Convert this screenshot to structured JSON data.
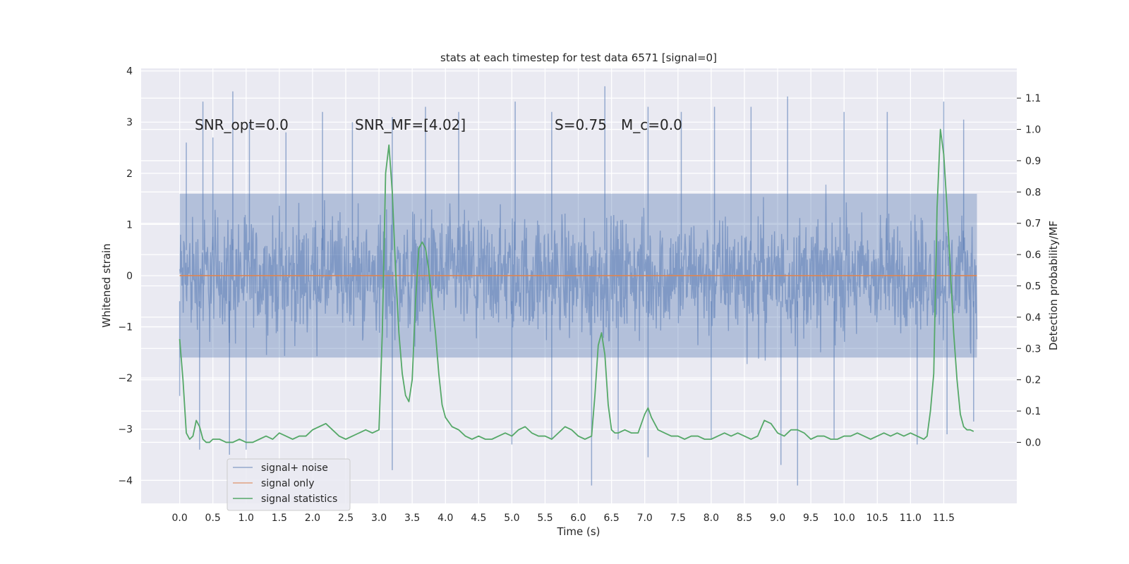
{
  "chart_data": {
    "type": "line",
    "title": "stats at each timestep for test data 6571 [signal=0]",
    "xlabel": "Time (s)",
    "ylabel": "Whitened strain",
    "y2label": "Detection probability/MF",
    "xlim": [
      -0.58,
      12.6
    ],
    "ylim": [
      -4.45,
      4.05
    ],
    "y2lim": [
      -0.195,
      1.195
    ],
    "x_ticks": [
      0.0,
      0.5,
      1.0,
      1.5,
      2.0,
      2.5,
      3.0,
      3.5,
      4.0,
      4.5,
      5.0,
      5.5,
      6.0,
      6.5,
      7.0,
      7.5,
      8.0,
      8.5,
      9.0,
      9.5,
      10.0,
      10.5,
      11.0,
      11.5
    ],
    "x_tick_labels": [
      "0.0",
      "0.5",
      "1.0",
      "1.5",
      "2.0",
      "2.5",
      "3.0",
      "3.5",
      "4.0",
      "4.5",
      "5.0",
      "5.5",
      "6.0",
      "6.5",
      "7.0",
      "7.5",
      "8.0",
      "8.5",
      "9.0",
      "9.5",
      "10.0",
      "10.5",
      "11.0",
      "11.5"
    ],
    "y_ticks": [
      -4,
      -3,
      -2,
      -1,
      0,
      1,
      2,
      3,
      4
    ],
    "y_tick_labels": [
      "−4",
      "−3",
      "−2",
      "−1",
      "0",
      "1",
      "2",
      "3",
      "4"
    ],
    "y2_ticks": [
      0.0,
      0.1,
      0.2,
      0.3,
      0.4,
      0.5,
      0.6,
      0.7,
      0.8,
      0.9,
      1.0,
      1.1
    ],
    "y2_tick_labels": [
      "0.0",
      "0.1",
      "0.2",
      "0.3",
      "0.4",
      "0.5",
      "0.6",
      "0.7",
      "0.8",
      "0.9",
      "1.0",
      "1.1"
    ],
    "grid": true,
    "legend_position": "lower-left",
    "annotations": {
      "snr_opt": "SNR_opt=0.0",
      "snr_mf": "SNR_MF=[4.02]",
      "s_stat": "S=0.75",
      "m_c": "M_c=0.0"
    },
    "series": [
      {
        "name": "signal+ noise",
        "color": "#4c72b0",
        "axis": "left",
        "kind": "noise_band",
        "x_range": [
          0.0,
          12.0
        ],
        "typical_envelope": [
          -1.6,
          1.6
        ],
        "extremes_up": [
          [
            0.1,
            2.6
          ],
          [
            0.35,
            3.4
          ],
          [
            0.5,
            2.7
          ],
          [
            0.8,
            3.6
          ],
          [
            1.05,
            3.0
          ],
          [
            1.6,
            2.8
          ],
          [
            2.15,
            3.2
          ],
          [
            2.6,
            3.0
          ],
          [
            3.2,
            3.1
          ],
          [
            3.7,
            3.3
          ],
          [
            4.2,
            3.2
          ],
          [
            5.05,
            3.4
          ],
          [
            5.6,
            3.2
          ],
          [
            6.4,
            3.7
          ],
          [
            7.05,
            3.3
          ],
          [
            7.55,
            3.2
          ],
          [
            8.05,
            3.3
          ],
          [
            8.6,
            3.3
          ],
          [
            9.15,
            3.5
          ],
          [
            10.0,
            3.2
          ],
          [
            10.65,
            3.2
          ],
          [
            11.5,
            3.4
          ],
          [
            11.8,
            3.05
          ]
        ],
        "extremes_down": [
          [
            0.0,
            -2.35
          ],
          [
            0.3,
            -3.4
          ],
          [
            0.75,
            -3.5
          ],
          [
            1.0,
            -3.4
          ],
          [
            3.2,
            -3.8
          ],
          [
            5.0,
            -3.3
          ],
          [
            5.6,
            -3.2
          ],
          [
            6.2,
            -4.1
          ],
          [
            6.6,
            -3.2
          ],
          [
            7.05,
            -3.55
          ],
          [
            8.0,
            -3.2
          ],
          [
            9.05,
            -3.7
          ],
          [
            9.3,
            -4.1
          ],
          [
            9.85,
            -3.2
          ],
          [
            11.1,
            -3.3
          ],
          [
            11.55,
            -3.1
          ],
          [
            11.95,
            -2.85
          ]
        ]
      },
      {
        "name": "signal only",
        "color": "#dd8452",
        "axis": "left",
        "x": [
          0.0,
          12.0
        ],
        "y": [
          0.0,
          0.0
        ]
      },
      {
        "name": "signal statistics",
        "color": "#55a868",
        "axis": "right",
        "x": [
          0.0,
          0.05,
          0.1,
          0.15,
          0.2,
          0.25,
          0.3,
          0.35,
          0.4,
          0.45,
          0.5,
          0.55,
          0.6,
          0.7,
          0.8,
          0.9,
          1.0,
          1.1,
          1.2,
          1.3,
          1.4,
          1.5,
          1.6,
          1.7,
          1.8,
          1.9,
          2.0,
          2.1,
          2.2,
          2.3,
          2.4,
          2.5,
          2.6,
          2.7,
          2.8,
          2.9,
          3.0,
          3.05,
          3.1,
          3.15,
          3.2,
          3.25,
          3.3,
          3.35,
          3.4,
          3.45,
          3.5,
          3.55,
          3.6,
          3.65,
          3.7,
          3.75,
          3.8,
          3.85,
          3.9,
          3.95,
          4.0,
          4.1,
          4.2,
          4.3,
          4.4,
          4.5,
          4.6,
          4.7,
          4.8,
          4.9,
          5.0,
          5.1,
          5.2,
          5.3,
          5.4,
          5.5,
          5.6,
          5.7,
          5.8,
          5.9,
          6.0,
          6.1,
          6.2,
          6.25,
          6.3,
          6.35,
          6.4,
          6.45,
          6.5,
          6.55,
          6.6,
          6.7,
          6.8,
          6.9,
          7.0,
          7.05,
          7.1,
          7.2,
          7.3,
          7.4,
          7.5,
          7.6,
          7.7,
          7.8,
          7.9,
          8.0,
          8.1,
          8.2,
          8.3,
          8.4,
          8.5,
          8.6,
          8.7,
          8.8,
          8.9,
          9.0,
          9.1,
          9.2,
          9.3,
          9.4,
          9.5,
          9.6,
          9.7,
          9.8,
          9.9,
          10.0,
          10.1,
          10.2,
          10.3,
          10.4,
          10.5,
          10.6,
          10.7,
          10.8,
          10.9,
          11.0,
          11.1,
          11.2,
          11.25,
          11.3,
          11.35,
          11.4,
          11.45,
          11.5,
          11.55,
          11.6,
          11.65,
          11.7,
          11.75,
          11.8,
          11.85,
          11.9,
          11.95
        ],
        "y": [
          0.33,
          0.2,
          0.03,
          0.01,
          0.02,
          0.07,
          0.05,
          0.01,
          0.0,
          0.0,
          0.01,
          0.01,
          0.01,
          0.0,
          0.0,
          0.01,
          0.0,
          0.0,
          0.01,
          0.02,
          0.01,
          0.03,
          0.02,
          0.01,
          0.02,
          0.02,
          0.04,
          0.05,
          0.06,
          0.04,
          0.02,
          0.01,
          0.02,
          0.03,
          0.04,
          0.03,
          0.04,
          0.35,
          0.86,
          0.95,
          0.8,
          0.55,
          0.35,
          0.22,
          0.15,
          0.13,
          0.2,
          0.45,
          0.62,
          0.64,
          0.62,
          0.55,
          0.45,
          0.35,
          0.22,
          0.12,
          0.08,
          0.05,
          0.04,
          0.02,
          0.01,
          0.02,
          0.01,
          0.01,
          0.02,
          0.03,
          0.02,
          0.04,
          0.05,
          0.03,
          0.02,
          0.02,
          0.01,
          0.03,
          0.05,
          0.04,
          0.02,
          0.01,
          0.02,
          0.15,
          0.31,
          0.35,
          0.28,
          0.12,
          0.04,
          0.03,
          0.03,
          0.04,
          0.03,
          0.03,
          0.09,
          0.11,
          0.08,
          0.04,
          0.03,
          0.02,
          0.02,
          0.01,
          0.02,
          0.02,
          0.01,
          0.01,
          0.02,
          0.03,
          0.02,
          0.03,
          0.02,
          0.01,
          0.02,
          0.07,
          0.06,
          0.03,
          0.02,
          0.04,
          0.04,
          0.03,
          0.01,
          0.02,
          0.02,
          0.01,
          0.01,
          0.02,
          0.02,
          0.03,
          0.02,
          0.01,
          0.02,
          0.03,
          0.02,
          0.03,
          0.02,
          0.03,
          0.02,
          0.01,
          0.02,
          0.1,
          0.22,
          0.75,
          1.0,
          0.92,
          0.75,
          0.55,
          0.35,
          0.2,
          0.09,
          0.05,
          0.04,
          0.04,
          0.035
        ]
      }
    ]
  }
}
